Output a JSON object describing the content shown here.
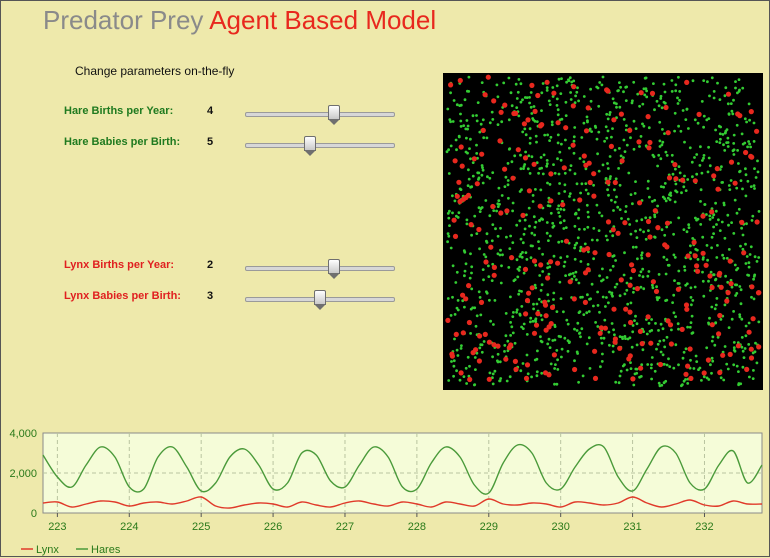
{
  "title": {
    "part1": "Predator Prey",
    "part2": "Agent Based Model"
  },
  "subtitle": "Change parameters on-the-fly",
  "params": [
    {
      "label": "Hare Births per Year:",
      "value": "4",
      "fraction": 0.6,
      "color": "#1f7a1f"
    },
    {
      "label": "Hare Babies per Birth:",
      "value": "5",
      "fraction": 0.43,
      "color": "#1f7a1f"
    },
    {
      "label": "Lynx Births per Year:",
      "value": "2",
      "fraction": 0.6,
      "color": "#e02020"
    },
    {
      "label": "Lynx Babies per Birth:",
      "value": "3",
      "fraction": 0.5,
      "color": "#e02020"
    }
  ],
  "simulation": {
    "hare_color": "#33cc33",
    "lynx_color": "#e8281e",
    "hare_count": 1400,
    "lynx_count": 260
  },
  "chart_data": {
    "type": "line",
    "x": [
      222.8,
      223.0,
      223.2,
      223.4,
      223.6,
      223.8,
      224.0,
      224.2,
      224.4,
      224.6,
      224.8,
      225.0,
      225.2,
      225.4,
      225.6,
      225.8,
      226.0,
      226.2,
      226.4,
      226.6,
      226.8,
      227.0,
      227.2,
      227.4,
      227.6,
      227.8,
      228.0,
      228.2,
      228.4,
      228.6,
      228.8,
      229.0,
      229.2,
      229.4,
      229.6,
      229.8,
      230.0,
      230.2,
      230.4,
      230.6,
      230.8,
      231.0,
      231.2,
      231.4,
      231.6,
      231.8,
      232.0,
      232.2,
      232.4,
      232.6,
      232.8
    ],
    "series": [
      {
        "name": "Lynx",
        "color": "#e03a2a",
        "values": [
          500,
          550,
          300,
          450,
          600,
          550,
          350,
          500,
          550,
          450,
          600,
          800,
          350,
          250,
          400,
          500,
          450,
          300,
          550,
          400,
          300,
          500,
          600,
          450,
          350,
          550,
          450,
          300,
          550,
          450,
          350,
          700,
          450,
          400,
          500,
          450,
          300,
          550,
          500,
          400,
          500,
          800,
          500,
          300,
          450,
          650,
          400,
          350,
          600,
          450,
          450
        ]
      },
      {
        "name": "Hares",
        "color": "#4a9a3a",
        "values": [
          2900,
          1800,
          1300,
          2400,
          3300,
          2800,
          1300,
          1200,
          2800,
          3300,
          2300,
          1100,
          1500,
          2800,
          3200,
          2400,
          1200,
          1500,
          3000,
          2900,
          1600,
          1300,
          2400,
          3300,
          2800,
          1300,
          1200,
          2500,
          3300,
          2800,
          1400,
          1000,
          2500,
          3400,
          3000,
          1500,
          1200,
          2300,
          3200,
          3300,
          1800,
          1100,
          2200,
          3300,
          3000,
          1500,
          1200,
          2400,
          3100,
          1500,
          2400
        ]
      }
    ],
    "xlim": [
      222.8,
      232.8
    ],
    "ylim": [
      0,
      4000
    ],
    "yticks": [
      "0",
      "2,000",
      "4,000"
    ],
    "xticks": [
      "223",
      "224",
      "225",
      "226",
      "227",
      "228",
      "229",
      "230",
      "231",
      "232"
    ],
    "grid": true,
    "legend": "bottom-left",
    "plot_bg": "#f5fcd8",
    "tick_color": "#2a7a1a"
  }
}
